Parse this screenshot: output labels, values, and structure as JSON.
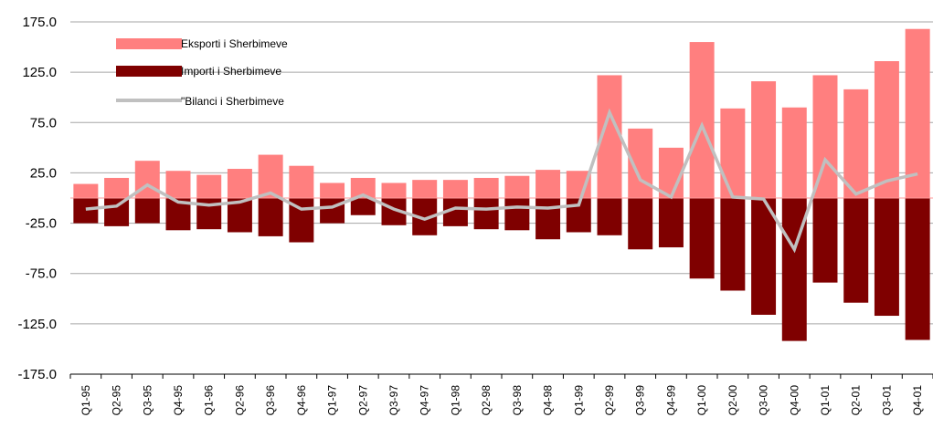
{
  "chart_data": {
    "type": "bar",
    "categories": [
      "Q1-95",
      "Q2-95",
      "Q3-95",
      "Q4-95",
      "Q1-96",
      "Q2-96",
      "Q3-96",
      "Q4-96",
      "Q1-97",
      "Q2-97",
      "Q3-97",
      "Q4-97",
      "Q1-98",
      "Q2-98",
      "Q3-98",
      "Q4-98",
      "Q1-99",
      "Q2-99",
      "Q3-99",
      "Q4-99",
      "Q1-00",
      "Q2-00",
      "Q3-00",
      "Q4-00",
      "Q1-01",
      "Q2-01",
      "Q3-01",
      "Q4-01"
    ],
    "yticks": [
      "175.0",
      "125.0",
      "75.0",
      "25.0",
      "-25.0",
      "-75.0",
      "-125.0",
      "-175.0"
    ],
    "ylim": [
      -175,
      175
    ],
    "grid": true,
    "legend_position": "top-left",
    "series": [
      {
        "name": "Eksporti i Sherbimeve",
        "type": "bar",
        "color": "#ff7f7f",
        "values": [
          14,
          20,
          37,
          27,
          23,
          29,
          43,
          32,
          15,
          20,
          15,
          18,
          18,
          20,
          22,
          28,
          27,
          122,
          69,
          50,
          155,
          89,
          116,
          90,
          122,
          108,
          136,
          168
        ]
      },
      {
        "name": "Importi i Sherbimeve",
        "type": "bar",
        "color": "#7f0000",
        "values": [
          -25,
          -28,
          -25,
          -32,
          -31,
          -34,
          -38,
          -44,
          -25,
          -17,
          -27,
          -37,
          -28,
          -31,
          -32,
          -41,
          -34,
          -37,
          -51,
          -49,
          -80,
          -92,
          -116,
          -142,
          -84,
          -104,
          -117,
          -141
        ]
      },
      {
        "name": "\"Bilanci i Sherbimeve",
        "type": "line",
        "color": "#c0c0c0",
        "values": [
          -11,
          -8,
          13,
          -4,
          -7,
          -4,
          5,
          -11,
          -9,
          3,
          -11,
          -21,
          -10,
          -11,
          -9,
          -10,
          -7,
          85,
          18,
          1,
          72,
          1,
          -1,
          -51,
          38,
          4,
          17,
          24
        ]
      }
    ]
  }
}
